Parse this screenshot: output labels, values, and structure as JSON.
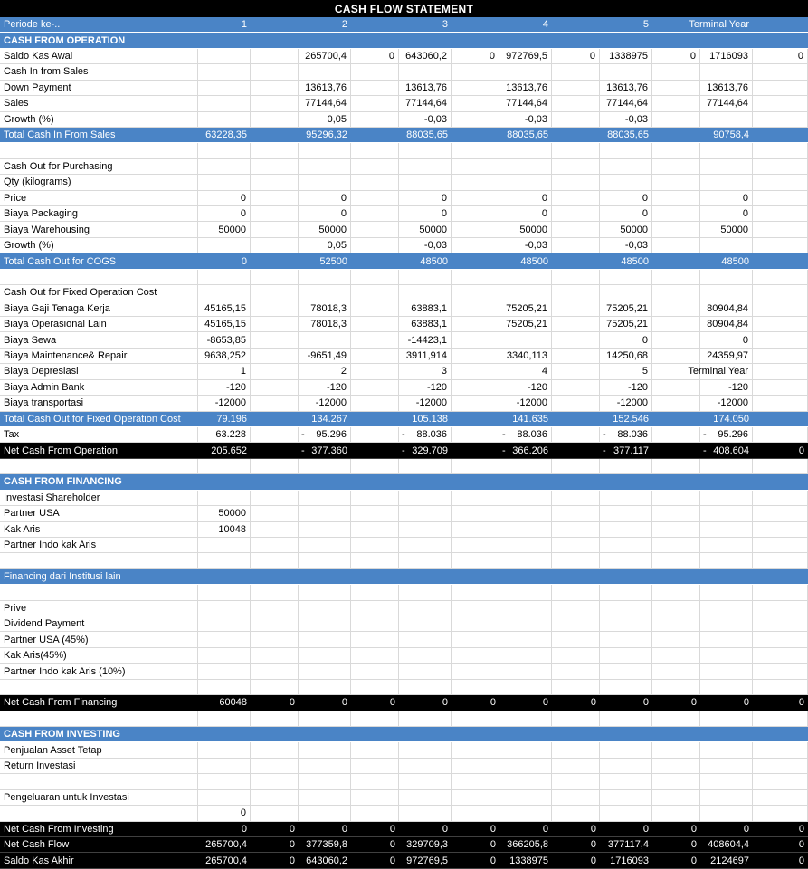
{
  "title": "CASH FLOW STATEMENT",
  "colors": {
    "band_blue": "#4a84c6",
    "band_black": "#000000",
    "grid_line": "#d9d9d9",
    "band_text": "#ffffff",
    "body_text": "#000000"
  },
  "table": {
    "column_layout": "label + 6 periods, each period = value column + zero column",
    "rows": [
      {
        "type": "hdr",
        "label": "Periode ke-..",
        "cells": [
          "1",
          "",
          "2",
          "",
          "3",
          "",
          "4",
          "",
          "5",
          "",
          "Terminal Year",
          ""
        ]
      },
      {
        "type": "sec",
        "bold": true,
        "label": "CASH FROM OPERATION"
      },
      {
        "type": "nrm",
        "label": "Saldo Kas Awal",
        "cells": [
          "",
          "",
          "265700,4",
          "0",
          "643060,2",
          "0",
          "972769,5",
          "0",
          "1338975",
          "0",
          "1716093",
          "0"
        ]
      },
      {
        "type": "nrm",
        "label": "Cash In from Sales",
        "cells": [
          "",
          "",
          "",
          "",
          "",
          "",
          "",
          "",
          "",
          "",
          "",
          ""
        ]
      },
      {
        "type": "nrm",
        "label": "Down Payment",
        "cells": [
          "",
          "",
          "13613,76",
          "",
          "13613,76",
          "",
          "13613,76",
          "",
          "13613,76",
          "",
          "13613,76",
          ""
        ]
      },
      {
        "type": "nrm",
        "label": "Sales",
        "cells": [
          "",
          "",
          "77144,64",
          "",
          "77144,64",
          "",
          "77144,64",
          "",
          "77144,64",
          "",
          "77144,64",
          ""
        ]
      },
      {
        "type": "nrm",
        "label": "Growth (%)",
        "cells": [
          "",
          "",
          "0,05",
          "",
          "-0,03",
          "",
          "-0,03",
          "",
          "-0,03",
          "",
          "",
          ""
        ]
      },
      {
        "type": "hdr",
        "label": "Total Cash In From Sales",
        "cells": [
          "63228,35",
          "",
          "95296,32",
          "",
          "88035,65",
          "",
          "88035,65",
          "",
          "88035,65",
          "",
          "90758,4",
          ""
        ]
      },
      {
        "type": "nrm",
        "label": "",
        "cells": [
          "",
          "",
          "",
          "",
          "",
          "",
          "",
          "",
          "",
          "",
          "",
          ""
        ]
      },
      {
        "type": "nrm",
        "label": "Cash Out for Purchasing",
        "cells": [
          "",
          "",
          "",
          "",
          "",
          "",
          "",
          "",
          "",
          "",
          "",
          ""
        ]
      },
      {
        "type": "nrm",
        "label": "Qty (kilograms)",
        "cells": [
          "",
          "",
          "",
          "",
          "",
          "",
          "",
          "",
          "",
          "",
          "",
          ""
        ]
      },
      {
        "type": "nrm",
        "label": "Price",
        "cells": [
          "0",
          "",
          "0",
          "",
          "0",
          "",
          "0",
          "",
          "0",
          "",
          "0",
          ""
        ]
      },
      {
        "type": "nrm",
        "label": "Biaya Packaging",
        "cells": [
          "0",
          "",
          "0",
          "",
          "0",
          "",
          "0",
          "",
          "0",
          "",
          "0",
          ""
        ]
      },
      {
        "type": "nrm",
        "label": "Biaya Warehousing",
        "cells": [
          "50000",
          "",
          "50000",
          "",
          "50000",
          "",
          "50000",
          "",
          "50000",
          "",
          "50000",
          ""
        ]
      },
      {
        "type": "nrm",
        "label": "Growth (%)",
        "cells": [
          "",
          "",
          "0,05",
          "",
          "-0,03",
          "",
          "-0,03",
          "",
          "-0,03",
          "",
          "",
          ""
        ]
      },
      {
        "type": "hdr",
        "label": "Total Cash Out for COGS",
        "cells": [
          "0",
          "",
          "52500",
          "",
          "48500",
          "",
          "48500",
          "",
          "48500",
          "",
          "48500",
          ""
        ]
      },
      {
        "type": "nrm",
        "label": "",
        "cells": [
          "",
          "",
          "",
          "",
          "",
          "",
          "",
          "",
          "",
          "",
          "",
          ""
        ]
      },
      {
        "type": "nrm",
        "label": "Cash Out for Fixed Operation Cost",
        "cells": [
          "",
          "",
          "",
          "",
          "",
          "",
          "",
          "",
          "",
          "",
          "",
          ""
        ]
      },
      {
        "type": "nrm",
        "label": "Biaya Gaji Tenaga Kerja",
        "cells": [
          "45165,15",
          "",
          "78018,3",
          "",
          "63883,1",
          "",
          "75205,21",
          "",
          "75205,21",
          "",
          "80904,84",
          ""
        ]
      },
      {
        "type": "nrm",
        "label": "Biaya Operasional Lain",
        "cells": [
          "45165,15",
          "",
          "78018,3",
          "",
          "63883,1",
          "",
          "75205,21",
          "",
          "75205,21",
          "",
          "80904,84",
          ""
        ]
      },
      {
        "type": "nrm",
        "label": "Biaya Sewa",
        "cells": [
          "-8653,85",
          "",
          "",
          "",
          "-14423,1",
          "",
          "",
          "",
          "0",
          "",
          "0",
          ""
        ]
      },
      {
        "type": "nrm",
        "label": "Biaya Maintenance& Repair",
        "cells": [
          "9638,252",
          "",
          "-9651,49",
          "",
          "3911,914",
          "",
          "3340,113",
          "",
          "14250,68",
          "",
          "24359,97",
          ""
        ]
      },
      {
        "type": "nrm",
        "label": "Biaya Depresiasi",
        "cells": [
          "1",
          "",
          "2",
          "",
          "3",
          "",
          "4",
          "",
          "5",
          "",
          "Terminal Year",
          ""
        ]
      },
      {
        "type": "nrm",
        "label": "Biaya Admin Bank",
        "cells": [
          "-120",
          "",
          "-120",
          "",
          "-120",
          "",
          "-120",
          "",
          "-120",
          "",
          "-120",
          ""
        ]
      },
      {
        "type": "nrm",
        "label": "Biaya transportasi",
        "cells": [
          "-12000",
          "",
          "-12000",
          "",
          "-12000",
          "",
          "-12000",
          "",
          "-12000",
          "",
          "-12000",
          ""
        ]
      },
      {
        "type": "hdr",
        "label": "Total Cash Out for Fixed Operation Cost",
        "cells": [
          "79.196",
          "",
          "134.267",
          "",
          "105.138",
          "",
          "141.635",
          "",
          "152.546",
          "",
          "174.050",
          ""
        ]
      },
      {
        "type": "nrm",
        "label": "Tax",
        "cells": [
          "63.228",
          "",
          "- 95.296",
          "",
          "- 88.036",
          "",
          "- 88.036",
          "",
          "- 88.036",
          "",
          "- 95.296",
          ""
        ]
      },
      {
        "type": "blk",
        "label": "Net Cash From Operation",
        "cells": [
          "205.652",
          "",
          "- 377.360",
          "",
          "- 329.709",
          "",
          "- 366.206",
          "",
          "- 377.117",
          "",
          "- 408.604",
          "0"
        ]
      },
      {
        "type": "nrm",
        "label": "",
        "cells": [
          "",
          "",
          "",
          "",
          "",
          "",
          "",
          "",
          "",
          "",
          "",
          ""
        ]
      },
      {
        "type": "sec",
        "bold": true,
        "label": "CASH FROM FINANCING"
      },
      {
        "type": "nrm",
        "label": "Investasi Shareholder",
        "cells": [
          "",
          "",
          "",
          "",
          "",
          "",
          "",
          "",
          "",
          "",
          "",
          ""
        ]
      },
      {
        "type": "nrm",
        "label": "Partner USA",
        "cells": [
          "50000",
          "",
          "",
          "",
          "",
          "",
          "",
          "",
          "",
          "",
          "",
          ""
        ]
      },
      {
        "type": "nrm",
        "label": "Kak Aris",
        "cells": [
          "10048",
          "",
          "",
          "",
          "",
          "",
          "",
          "",
          "",
          "",
          "",
          ""
        ]
      },
      {
        "type": "nrm",
        "label": "Partner Indo kak Aris",
        "cells": [
          "",
          "",
          "",
          "",
          "",
          "",
          "",
          "",
          "",
          "",
          "",
          ""
        ]
      },
      {
        "type": "nrm",
        "label": "",
        "cells": [
          "",
          "",
          "",
          "",
          "",
          "",
          "",
          "",
          "",
          "",
          "",
          ""
        ]
      },
      {
        "type": "sec",
        "bold": false,
        "label": "Financing dari Institusi lain"
      },
      {
        "type": "nrm",
        "label": "",
        "cells": [
          "",
          "",
          "",
          "",
          "",
          "",
          "",
          "",
          "",
          "",
          "",
          ""
        ]
      },
      {
        "type": "nrm",
        "label": "Prive",
        "cells": [
          "",
          "",
          "",
          "",
          "",
          "",
          "",
          "",
          "",
          "",
          "",
          ""
        ]
      },
      {
        "type": "nrm",
        "label": "Dividend Payment",
        "cells": [
          "",
          "",
          "",
          "",
          "",
          "",
          "",
          "",
          "",
          "",
          "",
          ""
        ]
      },
      {
        "type": "nrm",
        "label": "Partner USA (45%)",
        "cells": [
          "",
          "",
          "",
          "",
          "",
          "",
          "",
          "",
          "",
          "",
          "",
          ""
        ]
      },
      {
        "type": "nrm",
        "label": "Kak Aris(45%)",
        "cells": [
          "",
          "",
          "",
          "",
          "",
          "",
          "",
          "",
          "",
          "",
          "",
          ""
        ]
      },
      {
        "type": "nrm",
        "label": "Partner Indo kak Aris (10%)",
        "cells": [
          "",
          "",
          "",
          "",
          "",
          "",
          "",
          "",
          "",
          "",
          "",
          ""
        ]
      },
      {
        "type": "nrm",
        "label": "",
        "cells": [
          "",
          "",
          "",
          "",
          "",
          "",
          "",
          "",
          "",
          "",
          "",
          ""
        ]
      },
      {
        "type": "blk",
        "label": "Net Cash From Financing",
        "cells": [
          "60048",
          "0",
          "0",
          "0",
          "0",
          "0",
          "0",
          "0",
          "0",
          "0",
          "0",
          "0"
        ]
      },
      {
        "type": "nrm",
        "label": "",
        "cells": [
          "",
          "",
          "",
          "",
          "",
          "",
          "",
          "",
          "",
          "",
          "",
          ""
        ]
      },
      {
        "type": "sec",
        "bold": true,
        "label": "CASH FROM INVESTING"
      },
      {
        "type": "nrm",
        "label": "Penjualan Asset Tetap",
        "cells": [
          "",
          "",
          "",
          "",
          "",
          "",
          "",
          "",
          "",
          "",
          "",
          ""
        ]
      },
      {
        "type": "nrm",
        "label": "Return Investasi",
        "cells": [
          "",
          "",
          "",
          "",
          "",
          "",
          "",
          "",
          "",
          "",
          "",
          ""
        ]
      },
      {
        "type": "nrm",
        "label": "",
        "cells": [
          "",
          "",
          "",
          "",
          "",
          "",
          "",
          "",
          "",
          "",
          "",
          ""
        ]
      },
      {
        "type": "nrm",
        "label": "Pengeluaran untuk Investasi",
        "cells": [
          "",
          "",
          "",
          "",
          "",
          "",
          "",
          "",
          "",
          "",
          "",
          ""
        ]
      },
      {
        "type": "nrm",
        "label": "",
        "cells": [
          "0",
          "",
          "",
          "",
          "",
          "",
          "",
          "",
          "",
          "",
          "",
          ""
        ]
      },
      {
        "type": "blk",
        "label": "Net Cash From Investing",
        "cells": [
          "0",
          "0",
          "0",
          "0",
          "0",
          "0",
          "0",
          "0",
          "0",
          "0",
          "0",
          "0"
        ]
      },
      {
        "type": "blk",
        "label": "Net Cash Flow",
        "cells": [
          "265700,4",
          "0",
          "377359,8",
          "0",
          "329709,3",
          "0",
          "366205,8",
          "0",
          "377117,4",
          "0",
          "408604,4",
          "0"
        ]
      },
      {
        "type": "blk",
        "label": "Saldo Kas Akhir",
        "cells": [
          "265700,4",
          "0",
          "643060,2",
          "0",
          "972769,5",
          "0",
          "1338975",
          "0",
          "1716093",
          "0",
          "2124697",
          "0"
        ]
      }
    ]
  }
}
